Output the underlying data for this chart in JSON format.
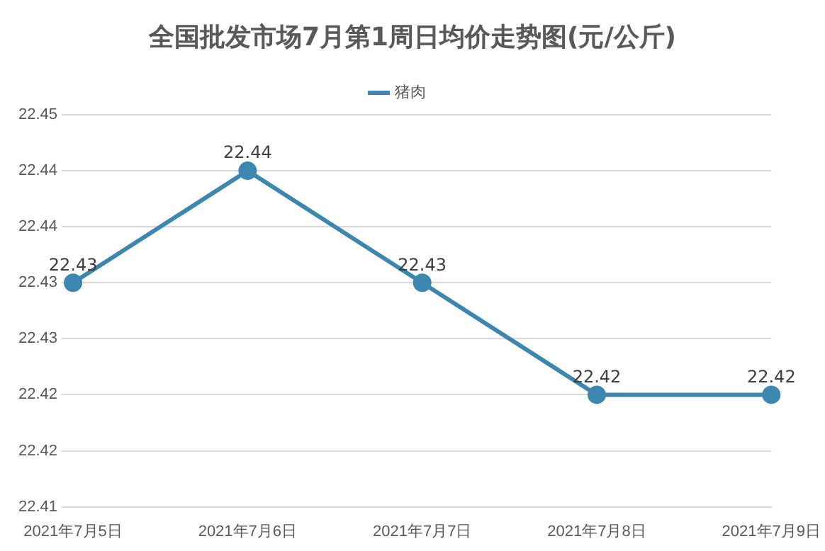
{
  "chart_data": {
    "type": "line",
    "title": "全国批发市场7月第1周日均价走势图(元/公斤)",
    "categories": [
      "2021年7月5日",
      "2021年7月6日",
      "2021年7月7日",
      "2021年7月8日",
      "2021年7月9日"
    ],
    "series": [
      {
        "name": "猪肉",
        "color": "#3b87b0",
        "values": [
          22.43,
          22.44,
          22.43,
          22.42,
          22.42
        ],
        "value_labels": [
          "22.43",
          "22.44",
          "22.43",
          "22.42",
          "22.42"
        ]
      }
    ],
    "ylim": [
      22.41,
      22.445
    ],
    "yticks": [
      22.41,
      {
        "value": 22.415,
        "label": "22.42"
      },
      22.42,
      {
        "value": 22.425,
        "label": "22.43"
      },
      22.43,
      {
        "value": 22.435,
        "label": "22.44"
      },
      22.44,
      {
        "value": 22.445,
        "label": "22.45"
      }
    ],
    "grid": "y",
    "legend": "top",
    "marker": "circle",
    "line_style": "solid"
  }
}
